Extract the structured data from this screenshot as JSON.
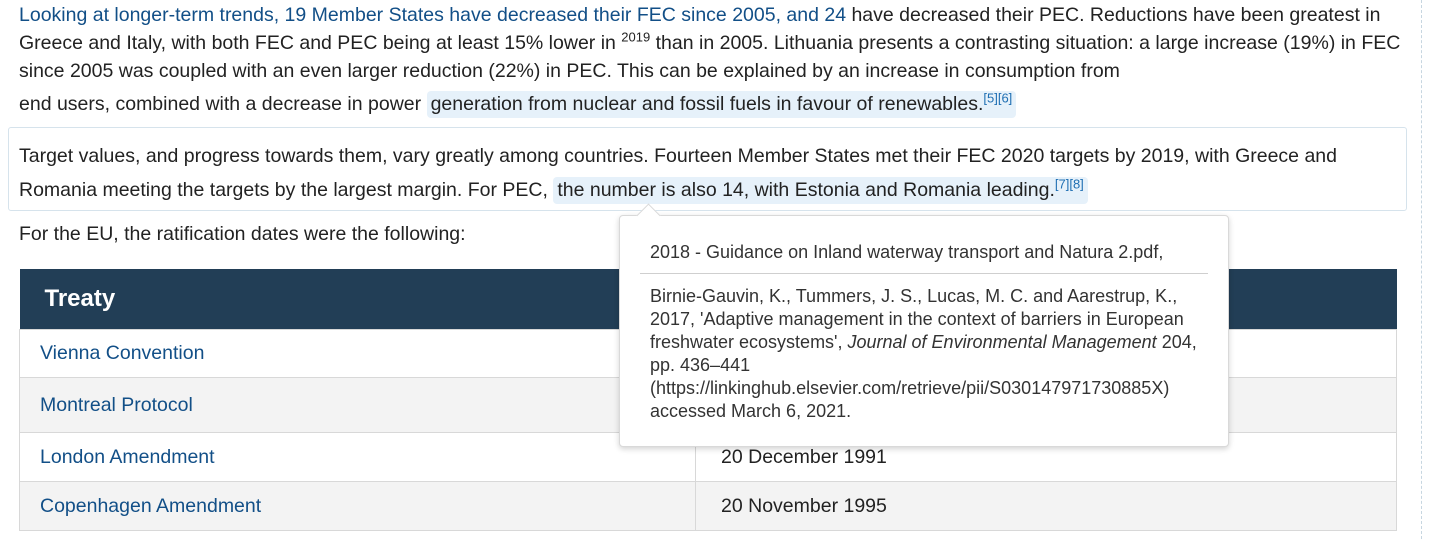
{
  "para1": {
    "link_text": "Looking at longer-term trends, 19 Member States have decreased their FEC since 2005, and 24",
    "text_a": " have decreased their PEC. Reductions have been greatest in Greece and Italy, with both FEC and PEC being at least 15% lower in ",
    "sup_year": "2019",
    "text_b": " than in 2005. Lithuania presents a contrasting situation: a large increase (19%) in FEC since 2005 was coupled with an even larger reduction (22%) in PEC. This can be explained by an increase in consumption from",
    "text_c": "end users, combined with a decrease in power ",
    "highlight": "generation from nuclear and fossil fuels in favour of renewables.",
    "refs": [
      "[5]",
      "[6]"
    ]
  },
  "para2": {
    "text_a": "Target values, and progress towards them, vary greatly among countries. Fourteen Member States met their FEC 2020 targets by 2019, with Greece and Romania meeting the targets by the largest margin. For PEC, ",
    "highlight": "the number is also 14, with Estonia and Romania leading.",
    "refs": [
      "[7]",
      "[8]"
    ]
  },
  "intro": "For the EU, the ratification dates were the following:",
  "table": {
    "header": [
      "Treaty",
      ""
    ],
    "rows": [
      {
        "treaty": "Vienna Convention",
        "date": ""
      },
      {
        "treaty": "Montreal Protocol",
        "date": ""
      },
      {
        "treaty": "London Amendment",
        "date": "20 December 1991"
      },
      {
        "treaty": "Copenhagen Amendment",
        "date": "20 November 1995"
      }
    ]
  },
  "tooltip": {
    "ref1": "2018 - Guidance on Inland waterway transport and Natura 2.pdf,",
    "ref2_a": "Birnie-Gauvin, K., Tummers, J. S., Lucas, M. C. and Aarestrup, K., 2017, 'Adaptive management in the context of barriers in European freshwater ecosystems', ",
    "ref2_journal": "Journal of Environmental Management",
    "ref2_b": " 204, pp. 436–441 (https://linkinghub.elsevier.com/retrieve/pii/S030147971730885X) accessed March 6, 2021."
  },
  "colors": {
    "link": "#124f87",
    "highlight_bg": "#e6f1fa",
    "table_header_bg": "#223e56"
  }
}
